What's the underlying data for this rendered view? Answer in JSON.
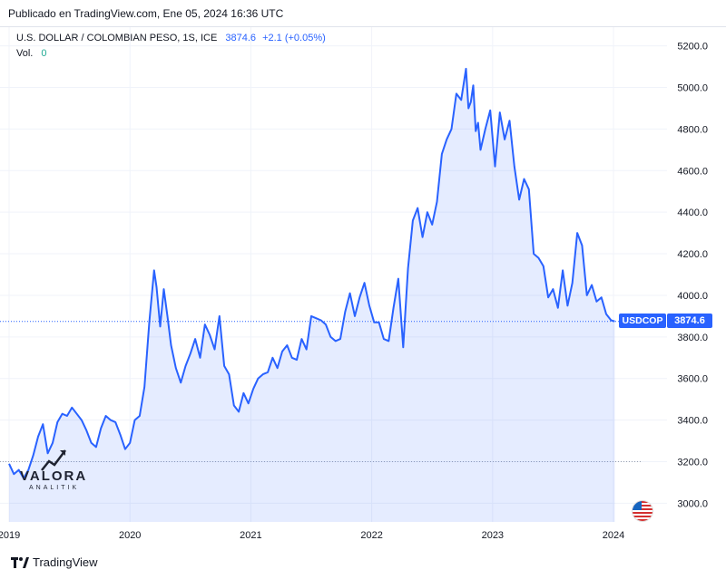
{
  "header": {
    "published": "Publicado en TradingView.com, Ene 05, 2024 16:36 UTC"
  },
  "legend": {
    "symbol": "U.S. DOLLAR / COLOMBIAN PESO, 1S, ICE",
    "last": "3874.6",
    "change": "+2.1 (+0.05%)",
    "vol_label": "Vol.",
    "vol_value": "0"
  },
  "price_tag": {
    "ticker": "USDCOP",
    "value": "3874.6"
  },
  "watermark": {
    "main": "VALORA",
    "sub": "ANALITIK"
  },
  "footer": {
    "brand": "TradingView"
  },
  "colors": {
    "line": "#2962ff",
    "area": "#2962ff",
    "tag": "#2962ff",
    "grid": "#f0f3fa"
  },
  "chart_data": {
    "type": "area",
    "y_ticks": [
      "3000.0",
      "3200.0",
      "3400.0",
      "3600.0",
      "3800.0",
      "4000.0",
      "4200.0",
      "4400.0",
      "4600.0",
      "4800.0",
      "5000.0",
      "5200.0"
    ],
    "x_ticks": [
      {
        "label": "2019",
        "x": 2019.0
      },
      {
        "label": "2020",
        "x": 2020.0
      },
      {
        "label": "2021",
        "x": 2021.0
      },
      {
        "label": "2022",
        "x": 2022.0
      },
      {
        "label": "2023",
        "x": 2023.0
      },
      {
        "label": "2024",
        "x": 2024.0
      }
    ],
    "ylim": [
      2910,
      5290
    ],
    "xlim": [
      2019.0,
      2024.24
    ],
    "last_value": 3874.6,
    "reference_level": 3200,
    "x": [
      2019.0,
      2019.04,
      2019.08,
      2019.12,
      2019.16,
      2019.2,
      2019.24,
      2019.28,
      2019.32,
      2019.36,
      2019.4,
      2019.44,
      2019.48,
      2019.52,
      2019.56,
      2019.6,
      2019.64,
      2019.68,
      2019.72,
      2019.76,
      2019.8,
      2019.84,
      2019.88,
      2019.92,
      2019.96,
      2020.0,
      2020.04,
      2020.08,
      2020.12,
      2020.16,
      2020.2,
      2020.22,
      2020.25,
      2020.28,
      2020.31,
      2020.34,
      2020.38,
      2020.42,
      2020.46,
      2020.5,
      2020.54,
      2020.58,
      2020.62,
      2020.66,
      2020.7,
      2020.74,
      2020.78,
      2020.82,
      2020.86,
      2020.9,
      2020.94,
      2020.98,
      2021.02,
      2021.06,
      2021.1,
      2021.14,
      2021.18,
      2021.22,
      2021.26,
      2021.3,
      2021.34,
      2021.38,
      2021.42,
      2021.46,
      2021.5,
      2021.54,
      2021.58,
      2021.62,
      2021.66,
      2021.7,
      2021.74,
      2021.78,
      2021.82,
      2021.86,
      2021.9,
      2021.94,
      2021.98,
      2022.02,
      2022.06,
      2022.1,
      2022.14,
      2022.18,
      2022.22,
      2022.26,
      2022.3,
      2022.34,
      2022.38,
      2022.42,
      2022.46,
      2022.5,
      2022.54,
      2022.58,
      2022.62,
      2022.66,
      2022.7,
      2022.74,
      2022.78,
      2022.8,
      2022.82,
      2022.84,
      2022.86,
      2022.88,
      2022.9,
      2022.94,
      2022.98,
      2023.02,
      2023.06,
      2023.1,
      2023.14,
      2023.18,
      2023.22,
      2023.26,
      2023.3,
      2023.34,
      2023.38,
      2023.42,
      2023.46,
      2023.5,
      2023.54,
      2023.58,
      2023.62,
      2023.66,
      2023.7,
      2023.74,
      2023.78,
      2023.82,
      2023.86,
      2023.9,
      2023.94,
      2023.98,
      2024.01
    ],
    "values": [
      3190,
      3140,
      3160,
      3120,
      3160,
      3230,
      3320,
      3380,
      3240,
      3290,
      3390,
      3430,
      3420,
      3460,
      3430,
      3400,
      3350,
      3290,
      3270,
      3360,
      3420,
      3400,
      3390,
      3330,
      3260,
      3290,
      3400,
      3420,
      3560,
      3870,
      4120,
      4040,
      3850,
      4030,
      3900,
      3760,
      3650,
      3580,
      3660,
      3720,
      3790,
      3700,
      3860,
      3810,
      3740,
      3900,
      3660,
      3620,
      3470,
      3440,
      3530,
      3480,
      3550,
      3600,
      3620,
      3630,
      3700,
      3650,
      3730,
      3760,
      3700,
      3690,
      3790,
      3740,
      3900,
      3890,
      3880,
      3860,
      3800,
      3780,
      3790,
      3920,
      4010,
      3900,
      3990,
      4060,
      3950,
      3870,
      3870,
      3790,
      3780,
      3940,
      4080,
      3750,
      4130,
      4360,
      4420,
      4280,
      4400,
      4340,
      4450,
      4680,
      4750,
      4800,
      4970,
      4940,
      5090,
      4900,
      4930,
      5010,
      4790,
      4830,
      4700,
      4800,
      4890,
      4620,
      4880,
      4750,
      4840,
      4620,
      4460,
      4560,
      4510,
      4200,
      4180,
      4140,
      3990,
      4030,
      3940,
      4120,
      3950,
      4060,
      4300,
      4240,
      4000,
      4050,
      3970,
      3990,
      3910,
      3880,
      3874.6
    ]
  }
}
